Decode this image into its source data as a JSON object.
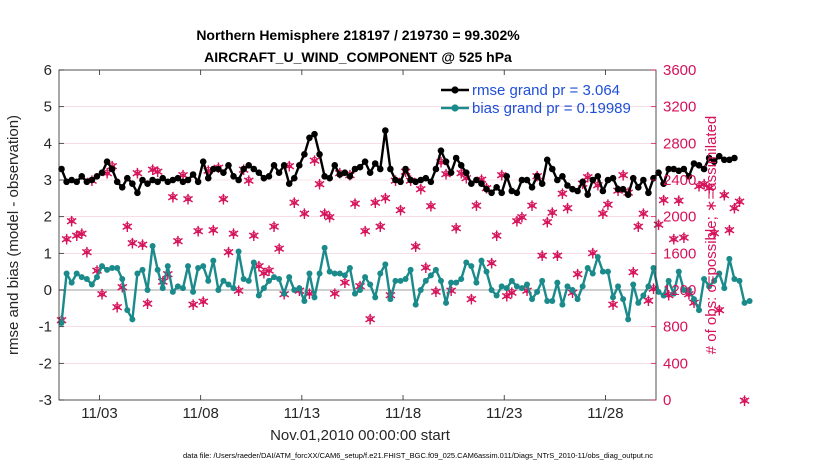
{
  "chart_data": {
    "type": "line",
    "title": "Northern Hemisphere 218197 / 219730 = 99.302%",
    "subtitle": "AIRCRAFT_U_WIND_COMPONENT @ 525 hPa",
    "xlabel": "Nov.01,2010 00:00:00 start",
    "ylabel_left": "rmse and bias (model - observation)",
    "ylabel_right": "# of obs: o=possible; ∗=assimilated",
    "footer": "data file: /Users/raeder/DAI/ATM_forcXX/CAM6_setup/f.e21.FHIST_BGC.f09_025.CAM6assim.011/Diags_NTrS_2010-11/obs_diag_output.nc",
    "xlim": [
      1.0,
      30.5
    ],
    "ylim_left": [
      -3,
      6
    ],
    "ylim_right": [
      0,
      3600
    ],
    "x_ticks": [
      3,
      8,
      13,
      18,
      23,
      28
    ],
    "x_tick_labels": [
      "11/03",
      "11/08",
      "11/13",
      "11/18",
      "11/23",
      "11/28"
    ],
    "y_left_ticks": [
      "-3",
      "-2",
      "-1",
      "0",
      "1",
      "2",
      "3",
      "4",
      "5",
      "6"
    ],
    "y_right_ticks": [
      "0",
      "400",
      "800",
      "1200",
      "1600",
      "2000",
      "2400",
      "2800",
      "3200",
      "3600"
    ],
    "x_start": 1.125,
    "x_step": 0.25,
    "series": [
      {
        "name": "rmse grand pr = 3.064",
        "color": "#000000",
        "marker": "star",
        "values": [
          3.3,
          2.95,
          3.0,
          2.95,
          3.1,
          2.95,
          3.0,
          3.1,
          3.2,
          3.5,
          3.3,
          2.95,
          2.8,
          3.05,
          2.9,
          2.65,
          3.0,
          2.9,
          3.0,
          2.95,
          3.05,
          2.95,
          3.0,
          3.05,
          2.95,
          3.0,
          3.15,
          2.95,
          3.5,
          3.05,
          3.3,
          3.3,
          3.2,
          3.4,
          3.1,
          3.0,
          3.3,
          3.4,
          3.3,
          3.2,
          3.05,
          3.1,
          3.4,
          3.2,
          3.4,
          2.9,
          3.05,
          3.4,
          3.7,
          4.15,
          4.25,
          3.7,
          3.1,
          3.05,
          3.4,
          3.15,
          3.2,
          3.1,
          3.3,
          3.35,
          3.5,
          3.2,
          3.45,
          3.3,
          4.35,
          3.3,
          3.0,
          2.95,
          3.3,
          3.0,
          2.95,
          3.0,
          3.05,
          2.95,
          3.3,
          3.8,
          3.5,
          3.2,
          3.6,
          3.4,
          3.2,
          2.9,
          3.0,
          2.9,
          2.75,
          2.65,
          2.8,
          2.65,
          3.1,
          2.7,
          2.65,
          3.0,
          3.0,
          2.8,
          3.1,
          2.9,
          3.55,
          3.3,
          3.0,
          3.1,
          2.85,
          2.75,
          2.7,
          2.95,
          2.6,
          3.0,
          3.1,
          2.7,
          3.0,
          3.05,
          2.75,
          2.75,
          2.6,
          3.05,
          2.8,
          3.0,
          2.65,
          3.05,
          3.2,
          2.9,
          3.3,
          3.3,
          3.25,
          3.3,
          3.1,
          3.45,
          3.4,
          3.3,
          3.6,
          3.5,
          3.65,
          3.55,
          3.55,
          3.6
        ]
      },
      {
        "name": "bias grand pr = 0.19989",
        "color": "#1a8a8a",
        "marker": "circle",
        "values": [
          -0.9,
          0.45,
          0.2,
          0.45,
          0.35,
          0.3,
          0.15,
          0.35,
          0.65,
          0.55,
          0.6,
          0.6,
          0.3,
          -0.55,
          -0.8,
          0.45,
          0.55,
          0.0,
          1.2,
          0.55,
          0.05,
          0.65,
          -0.05,
          0.1,
          0.05,
          0.65,
          -0.05,
          0.6,
          0.65,
          0.25,
          0.8,
          0.0,
          0.25,
          0.15,
          0.05,
          1.05,
          0.3,
          0.25,
          0.75,
          -0.15,
          0.05,
          0.25,
          0.35,
          0.3,
          -0.1,
          0.35,
          0.0,
          0.05,
          -0.3,
          0.45,
          -0.2,
          0.45,
          1.15,
          0.5,
          0.45,
          0.45,
          0.4,
          0.6,
          -0.1,
          0.0,
          0.35,
          0.15,
          -0.2,
          0.45,
          0.7,
          -0.25,
          0.25,
          0.25,
          0.3,
          0.55,
          -0.4,
          0.0,
          0.25,
          0.4,
          0.55,
          0.25,
          -0.35,
          0.2,
          0.2,
          0.3,
          0.75,
          0.65,
          0.2,
          0.8,
          0.5,
          0.0,
          -0.15,
          0.1,
          0.05,
          0.25,
          0.1,
          0.05,
          0.15,
          -0.25,
          -0.05,
          0.25,
          -0.3,
          -0.3,
          0.2,
          -0.4,
          0.1,
          0.0,
          -0.25,
          0.1,
          0.6,
          0.45,
          0.9,
          0.5,
          0.5,
          -0.2,
          0.1,
          -0.25,
          -0.8,
          0.15,
          -0.35,
          -0.15,
          0.1,
          0.6,
          -0.05,
          -0.15,
          0.25,
          -0.1,
          0.5,
          0.0,
          0.0,
          -0.25,
          -0.55,
          0.3,
          0.1,
          0.25,
          0.45,
          0.05,
          0.85,
          0.3,
          0.25,
          -0.35,
          -0.3
        ]
      }
    ],
    "obs_counts": {
      "color": "#d6125a",
      "assimilated_marker": "∗",
      "possible_marker": "o",
      "assimilated": [
        880,
        1760,
        1960,
        1800,
        1820,
        1620,
        2400,
        1420,
        1160,
        2480,
        2560,
        1020,
        1240,
        1900,
        1720,
        2480,
        1700,
        1060,
        2520,
        2500,
        1300,
        1380,
        2220,
        1740,
        2460,
        2200,
        1050,
        1850,
        1080,
        2510,
        1860,
        2540,
        2200,
        1620,
        1820,
        1200,
        2520,
        2400,
        1800,
        1470,
        1390,
        1420,
        1900,
        1660,
        1160,
        2560,
        2160,
        1200,
        2040,
        1170,
        2620,
        2360,
        2040,
        2000,
        1170,
        2480,
        1290,
        2460,
        2150,
        1250,
        1850,
        890,
        2160,
        1900,
        2210,
        1150,
        2400,
        2080,
        2500,
        2400,
        1680,
        2310,
        1450,
        2120,
        1190,
        2600,
        2470,
        1200,
        1880,
        2480,
        2430,
        1110,
        2130,
        2410,
        2320,
        1500,
        1800,
        2460,
        1140,
        1180,
        1960,
        2000,
        1200,
        2130,
        2450,
        1580,
        1950,
        2050,
        1580,
        2260,
        2100,
        1180,
        1380,
        2370,
        2440,
        1610,
        2350,
        2040,
        2140,
        1050,
        2290,
        2460,
        2270,
        1400,
        1900,
        2040,
        1090,
        1220,
        1920,
        2190,
        1150,
        1760,
        2180,
        1780,
        1160,
        1070,
        2340,
        2360,
        2320,
        1830,
        990,
        2240,
        1860,
        2100,
        2170,
        0
      ]
    },
    "legend": {
      "rmse_label": "rmse grand pr = 3.064",
      "bias_label": "bias grand pr = 0.19989",
      "position": "top-right"
    }
  }
}
